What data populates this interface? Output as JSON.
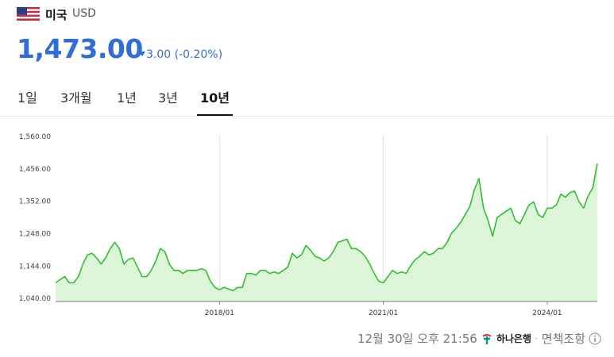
{
  "header": {
    "country": "미국",
    "currency": "USD"
  },
  "price": "1,473.00",
  "change": {
    "amount": "3.00",
    "percent": "(-0.20%)"
  },
  "tabs": [
    "1일",
    "3개월",
    "1년",
    "3년",
    "10년"
  ],
  "selected_tab": 4,
  "chart_data": {
    "type": "line",
    "color": "#2ec12e",
    "fill": "#dcf5d9",
    "grid": "x",
    "x": [
      "2015/01",
      "2015/02",
      "2015/03",
      "2015/04",
      "2015/05",
      "2015/06",
      "2015/07",
      "2015/08",
      "2015/09",
      "2015/10",
      "2015/11",
      "2015/12",
      "2016/01",
      "2016/02",
      "2016/03",
      "2016/04",
      "2016/05",
      "2016/06",
      "2016/07",
      "2016/08",
      "2016/09",
      "2016/10",
      "2016/11",
      "2016/12",
      "2017/01",
      "2017/02",
      "2017/03",
      "2017/04",
      "2017/05",
      "2017/06",
      "2017/07",
      "2017/08",
      "2017/09",
      "2017/10",
      "2017/11",
      "2017/12",
      "2018/01",
      "2018/02",
      "2018/03",
      "2018/04",
      "2018/05",
      "2018/06",
      "2018/07",
      "2018/08",
      "2018/09",
      "2018/10",
      "2018/11",
      "2018/12",
      "2019/01",
      "2019/02",
      "2019/03",
      "2019/04",
      "2019/05",
      "2019/06",
      "2019/07",
      "2019/08",
      "2019/09",
      "2019/10",
      "2019/11",
      "2019/12",
      "2020/01",
      "2020/02",
      "2020/03",
      "2020/04",
      "2020/05",
      "2020/06",
      "2020/07",
      "2020/08",
      "2020/09",
      "2020/10",
      "2020/11",
      "2020/12",
      "2021/01",
      "2021/02",
      "2021/03",
      "2021/04",
      "2021/05",
      "2021/06",
      "2021/07",
      "2021/08",
      "2021/09",
      "2021/10",
      "2021/11",
      "2021/12",
      "2022/01",
      "2022/02",
      "2022/03",
      "2022/04",
      "2022/05",
      "2022/06",
      "2022/07",
      "2022/08",
      "2022/09",
      "2022/10",
      "2022/11",
      "2022/12",
      "2023/01",
      "2023/02",
      "2023/03",
      "2023/04",
      "2023/05",
      "2023/06",
      "2023/07",
      "2023/08",
      "2023/09",
      "2023/10",
      "2023/11",
      "2023/12",
      "2024/01",
      "2024/02",
      "2024/03",
      "2024/04",
      "2024/05",
      "2024/06",
      "2024/07",
      "2024/08",
      "2024/09",
      "2024/10",
      "2024/11",
      "2024/12"
    ],
    "series": [
      {
        "name": "USD",
        "values": [
          1090,
          1100,
          1110,
          1090,
          1090,
          1110,
          1150,
          1180,
          1185,
          1170,
          1150,
          1170,
          1200,
          1220,
          1200,
          1150,
          1165,
          1170,
          1140,
          1110,
          1110,
          1130,
          1160,
          1200,
          1190,
          1150,
          1130,
          1130,
          1120,
          1130,
          1130,
          1130,
          1135,
          1130,
          1095,
          1075,
          1068,
          1075,
          1070,
          1065,
          1075,
          1075,
          1120,
          1120,
          1115,
          1130,
          1130,
          1120,
          1125,
          1120,
          1130,
          1140,
          1185,
          1170,
          1180,
          1210,
          1195,
          1175,
          1170,
          1160,
          1170,
          1190,
          1220,
          1225,
          1230,
          1200,
          1200,
          1190,
          1175,
          1150,
          1120,
          1095,
          1090,
          1110,
          1130,
          1120,
          1125,
          1120,
          1145,
          1165,
          1175,
          1190,
          1180,
          1185,
          1200,
          1200,
          1220,
          1250,
          1265,
          1285,
          1310,
          1335,
          1390,
          1425,
          1330,
          1290,
          1240,
          1300,
          1310,
          1320,
          1330,
          1290,
          1280,
          1310,
          1340,
          1350,
          1310,
          1300,
          1330,
          1330,
          1340,
          1375,
          1365,
          1380,
          1385,
          1350,
          1330,
          1370,
          1395,
          1473
        ]
      }
    ],
    "ylim": [
      1030,
      1590
    ],
    "yticks": [
      {
        "value": 1040,
        "label": "1,040.00"
      },
      {
        "value": 1144,
        "label": "1,144.00"
      },
      {
        "value": 1248,
        "label": "1,248.00"
      },
      {
        "value": 1352,
        "label": "1,352.00"
      },
      {
        "value": 1456,
        "label": "1,456.00"
      },
      {
        "value": 1560,
        "label": "1,560.00"
      }
    ],
    "xticks": [
      "2018/01",
      "2021/01",
      "2024/01"
    ]
  },
  "footer": {
    "timestamp": "12월 30일 오후 21:56",
    "bank": "하나은행",
    "disclaimer": "면책조항"
  }
}
